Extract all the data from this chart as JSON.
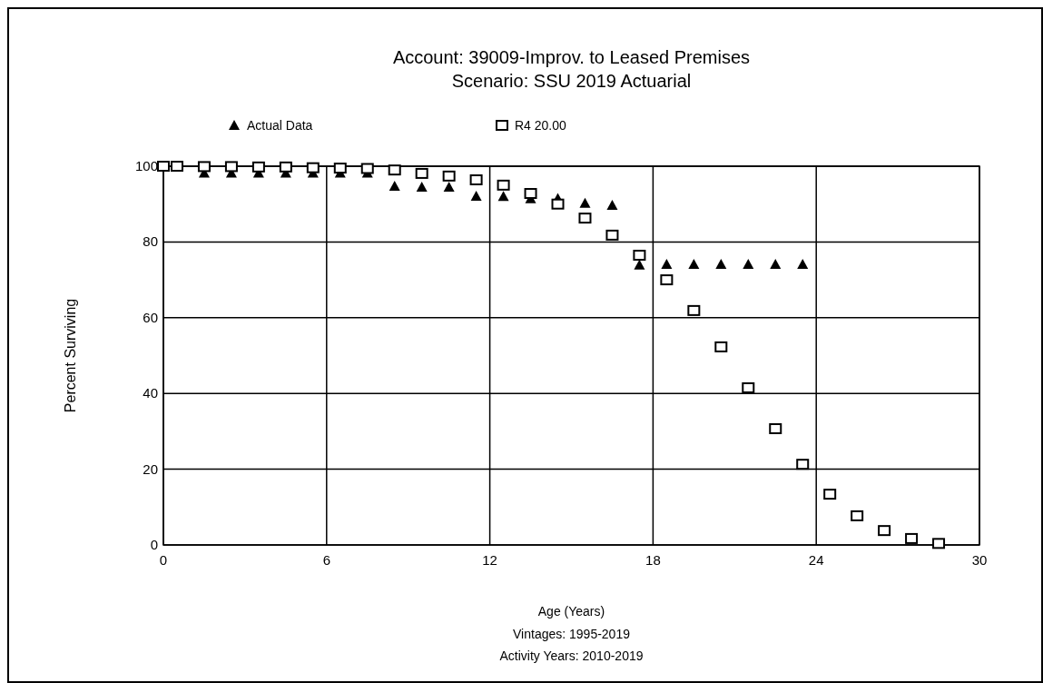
{
  "chart_data": {
    "type": "scatter",
    "title": "Account: 39009-Improv. to Leased Premises",
    "subtitle": "Scenario: SSU 2019 Actuarial",
    "xlabel": "Age (Years)",
    "ylabel": "Percent Surviving",
    "annotations": [
      "Vintages: 1995-2019",
      "Activity Years: 2010-2019"
    ],
    "xlim": [
      0,
      30
    ],
    "xticks": [
      0,
      6,
      12,
      18,
      24,
      30
    ],
    "ylim": [
      0,
      100
    ],
    "yticks": [
      0,
      20,
      40,
      60,
      80,
      100
    ],
    "grid": true,
    "legend": "top",
    "series": [
      {
        "name": "Actual Data",
        "color": "#000000",
        "marker": "triangle",
        "x": [
          1.5,
          2.5,
          3.5,
          4.5,
          5.5,
          6.5,
          7.5,
          8.5,
          9.5,
          10.5,
          11.5,
          12.5,
          13.5,
          14.5,
          15.5,
          16.5,
          17.5,
          18.5,
          19.5,
          20.5,
          21.5,
          22.5,
          23.5
        ],
        "values": [
          98.2,
          98.2,
          98.2,
          98.2,
          98.2,
          98.2,
          98.2,
          94.7,
          94.5,
          94.5,
          92.1,
          92,
          91.4,
          91.5,
          90.2,
          89.7,
          73.9,
          74.1,
          74.1,
          74.1,
          74.1,
          74.1,
          74.1
        ]
      },
      {
        "name": "R4 20.00",
        "color": "#000000",
        "marker": "square",
        "x": [
          0,
          0.5,
          1.5,
          2.5,
          3.5,
          4.5,
          5.5,
          6.5,
          7.5,
          8.5,
          9.5,
          10.5,
          11.5,
          12.5,
          13.5,
          14.5,
          15.5,
          16.5,
          17.5,
          18.5,
          19.5,
          20.5,
          21.5,
          22.5,
          23.5,
          24.5,
          25.5,
          26.5,
          27.5,
          28.5
        ],
        "values": [
          100,
          100,
          99.9,
          99.9,
          99.8,
          99.8,
          99.6,
          99.5,
          99.4,
          99,
          98.1,
          97.4,
          96.4,
          95,
          92.8,
          90,
          86.3,
          81.8,
          76.5,
          70,
          61.9,
          52.3,
          41.5,
          30.7,
          21.3,
          13.4,
          7.7,
          3.8,
          1.7,
          0.4
        ]
      }
    ]
  }
}
